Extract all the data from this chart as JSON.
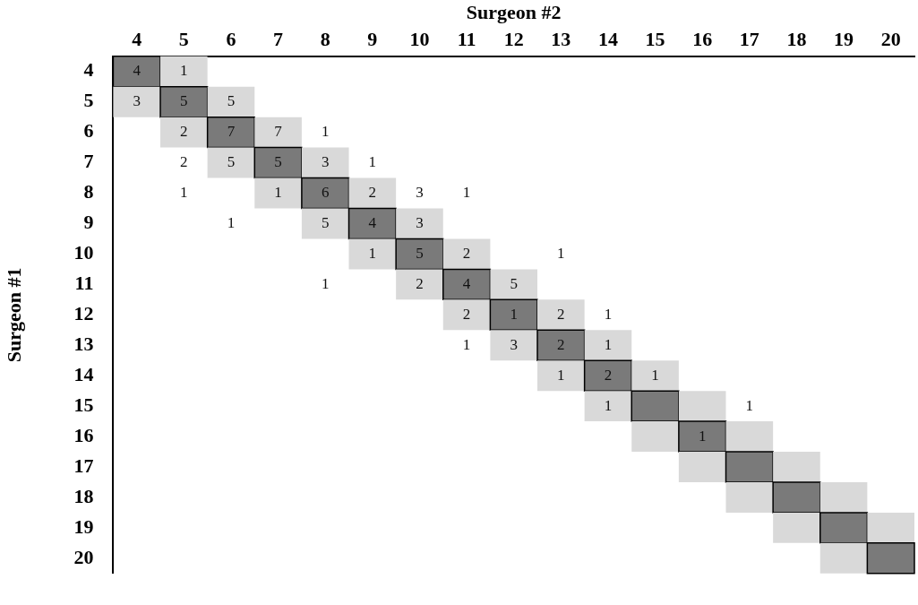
{
  "chart_data": {
    "type": "heatmap",
    "xlabel": "Surgeon #2",
    "ylabel": "Surgeon #1",
    "categories": [
      "4",
      "5",
      "6",
      "7",
      "8",
      "9",
      "10",
      "11",
      "12",
      "13",
      "14",
      "15",
      "16",
      "17",
      "18",
      "19",
      "20"
    ],
    "y_categories": [
      "4",
      "5",
      "6",
      "7",
      "8",
      "9",
      "10",
      "11",
      "12",
      "13",
      "14",
      "15",
      "16",
      "17",
      "18",
      "19",
      "20"
    ],
    "colors": [
      "#7a7a7a",
      "#d9d9d9"
    ],
    "data_labels": true,
    "cells": [
      [
        4,
        1,
        null,
        null,
        null,
        null,
        null,
        null,
        null,
        null,
        null,
        null,
        null,
        null,
        null,
        null,
        null
      ],
      [
        3,
        5,
        5,
        null,
        null,
        null,
        null,
        null,
        null,
        null,
        null,
        null,
        null,
        null,
        null,
        null,
        null
      ],
      [
        null,
        2,
        7,
        7,
        1,
        null,
        null,
        null,
        null,
        null,
        null,
        null,
        null,
        null,
        null,
        null,
        null
      ],
      [
        null,
        2,
        5,
        5,
        3,
        1,
        null,
        null,
        null,
        null,
        null,
        null,
        null,
        null,
        null,
        null,
        null
      ],
      [
        null,
        1,
        null,
        1,
        6,
        2,
        3,
        1,
        null,
        null,
        null,
        null,
        null,
        null,
        null,
        null,
        null
      ],
      [
        null,
        null,
        1,
        null,
        5,
        4,
        3,
        null,
        null,
        null,
        null,
        null,
        null,
        null,
        null,
        null,
        null
      ],
      [
        null,
        null,
        null,
        null,
        null,
        1,
        5,
        2,
        null,
        1,
        null,
        null,
        null,
        null,
        null,
        null,
        null
      ],
      [
        null,
        null,
        null,
        null,
        1,
        null,
        2,
        4,
        5,
        null,
        null,
        null,
        null,
        null,
        null,
        null,
        null
      ],
      [
        null,
        null,
        null,
        null,
        null,
        null,
        null,
        2,
        1,
        2,
        1,
        null,
        null,
        null,
        null,
        null,
        null
      ],
      [
        null,
        null,
        null,
        null,
        null,
        null,
        null,
        1,
        3,
        2,
        1,
        null,
        null,
        null,
        null,
        null,
        null
      ],
      [
        null,
        null,
        null,
        null,
        null,
        null,
        null,
        null,
        null,
        1,
        2,
        1,
        null,
        null,
        null,
        null,
        null
      ],
      [
        null,
        null,
        null,
        null,
        null,
        null,
        null,
        null,
        null,
        null,
        1,
        null,
        null,
        1,
        null,
        null,
        null
      ],
      [
        null,
        null,
        null,
        null,
        null,
        null,
        null,
        null,
        null,
        null,
        null,
        null,
        1,
        null,
        null,
        null,
        null
      ],
      [
        null,
        null,
        null,
        null,
        null,
        null,
        null,
        null,
        null,
        null,
        null,
        null,
        null,
        null,
        null,
        null,
        null
      ],
      [
        null,
        null,
        null,
        null,
        null,
        null,
        null,
        null,
        null,
        null,
        null,
        null,
        null,
        null,
        null,
        null,
        null
      ],
      [
        null,
        null,
        null,
        null,
        null,
        null,
        null,
        null,
        null,
        null,
        null,
        null,
        null,
        null,
        null,
        null,
        null
      ],
      [
        null,
        null,
        null,
        null,
        null,
        null,
        null,
        null,
        null,
        null,
        null,
        null,
        null,
        null,
        null,
        null,
        null
      ]
    ]
  }
}
